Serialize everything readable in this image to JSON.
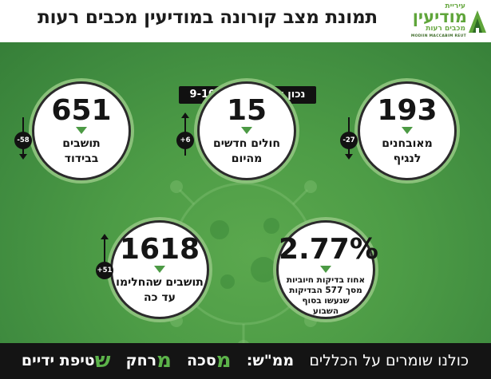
{
  "header": {
    "title": "תמונת מצב קורונה במודיעין מכבים רעות",
    "logo": {
      "small_line": "עיריית",
      "big_line": "מודיעין",
      "sub_line": "מכבים רעות",
      "english": "MODIIN MACCABIM REUT",
      "colors": {
        "green": "#5fa53a",
        "dark": "#3d6b28"
      }
    }
  },
  "date_badge": "נכון לתאריכים 9-10.10",
  "stats": [
    {
      "id": "quarantined",
      "number": "651",
      "label_line1": "תושבים",
      "label_line2": "בבידוד",
      "delta": "-58",
      "trend": "down"
    },
    {
      "id": "new-cases",
      "number": "15",
      "label_line1": "חולים חדשים",
      "label_line2": "מהיום",
      "delta": "+6",
      "trend": "up"
    },
    {
      "id": "active-patients",
      "number": "193",
      "label_line1": "מאובחנים",
      "label_line2": "לנגיף",
      "delta": "-27",
      "trend": "down"
    },
    {
      "id": "recovered",
      "number": "1618",
      "label_line1": "תושבים שהחלימו",
      "label_line2": "עד כה",
      "delta": "+51",
      "trend": "up"
    },
    {
      "id": "positive-rate",
      "number": "2.77%",
      "label_lines": [
        "אחוז בדיקות חיוביות",
        "מסך 577 הבדיקות",
        "שנעשו בסוף",
        "השבוע"
      ]
    }
  ],
  "footer": {
    "lead": "כולנו שומרים על הכללים",
    "prefix": "ממ\"ש:",
    "rules": [
      {
        "letter": "מ",
        "rest": "סכה"
      },
      {
        "letter": "מ",
        "rest": "רחק"
      },
      {
        "letter": "ש",
        "rest": "טיפת ידיים"
      }
    ]
  },
  "colors": {
    "accent_green": "#4c9a44",
    "background_green": "#4d9c46",
    "footer_green": "#5cb34a",
    "dark": "#121212"
  }
}
